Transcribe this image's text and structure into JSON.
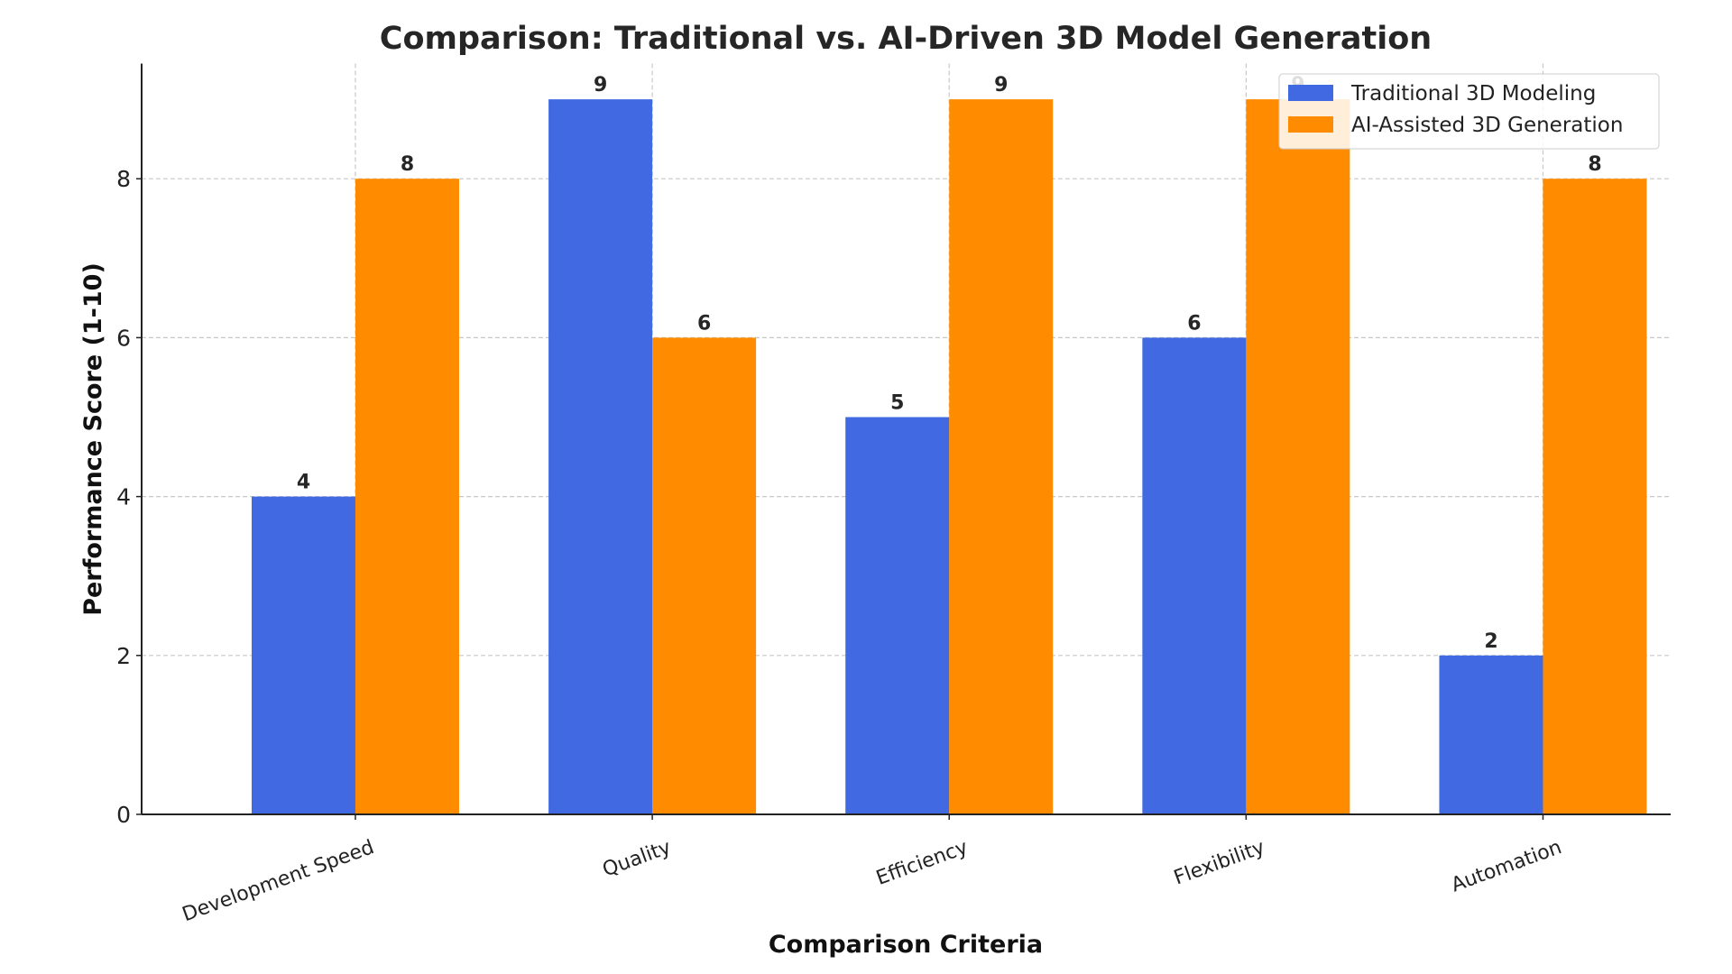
{
  "chart_data": {
    "type": "bar",
    "title": "Comparison: Traditional vs. AI-Driven 3D Model Generation",
    "xlabel": "Comparison Criteria",
    "ylabel": "Performance Score (1-10)",
    "categories": [
      "Development Speed",
      "Quality",
      "Efficiency",
      "Flexibility",
      "Automation"
    ],
    "series": [
      {
        "name": "Traditional 3D Modeling",
        "color": "#4169E1",
        "values": [
          4,
          9,
          5,
          6,
          2
        ]
      },
      {
        "name": "AI-Assisted 3D Generation",
        "color": "#FF8C00",
        "values": [
          8,
          6,
          9,
          9,
          8
        ]
      }
    ],
    "ylim": [
      0,
      9.45
    ],
    "yticks": [
      "0",
      "2",
      "4",
      "6",
      "8"
    ],
    "grid": true,
    "legend": "top-right",
    "data_labels": true
  }
}
